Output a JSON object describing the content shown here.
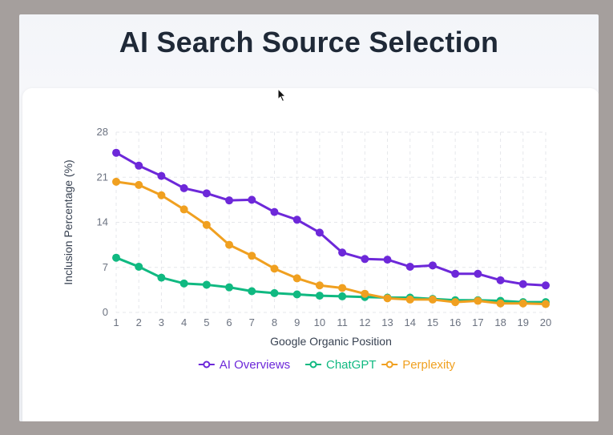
{
  "page_title": "AI Search Source Selection",
  "chart_data": {
    "type": "line",
    "title": "",
    "xlabel": "Google Organic Position",
    "ylabel": "Inclusion Percentage (%)",
    "x": [
      1,
      2,
      3,
      4,
      5,
      6,
      7,
      8,
      9,
      10,
      11,
      12,
      13,
      14,
      15,
      16,
      17,
      18,
      19,
      20
    ],
    "ylim": [
      0,
      28
    ],
    "yticks": [
      0,
      7,
      14,
      21,
      28
    ],
    "grid": true,
    "legend_position": "bottom",
    "series": [
      {
        "name": "AI Overviews",
        "color": "#6d28d9",
        "values": [
          24.8,
          22.8,
          21.2,
          19.3,
          18.5,
          17.4,
          17.5,
          15.6,
          14.4,
          12.4,
          9.3,
          8.3,
          8.2,
          7.1,
          7.3,
          6.0,
          6.0,
          5.0,
          4.4,
          4.2
        ]
      },
      {
        "name": "ChatGPT",
        "color": "#10b981",
        "values": [
          8.5,
          7.1,
          5.4,
          4.5,
          4.3,
          3.9,
          3.3,
          3.0,
          2.8,
          2.6,
          2.5,
          2.4,
          2.3,
          2.3,
          2.1,
          1.9,
          1.9,
          1.8,
          1.6,
          1.6
        ]
      },
      {
        "name": "Perplexity",
        "color": "#f0a020",
        "values": [
          20.3,
          19.8,
          18.2,
          16.0,
          13.6,
          10.5,
          8.8,
          6.8,
          5.3,
          4.2,
          3.8,
          2.9,
          2.2,
          2.0,
          2.0,
          1.6,
          1.8,
          1.4,
          1.4,
          1.3
        ]
      }
    ]
  }
}
